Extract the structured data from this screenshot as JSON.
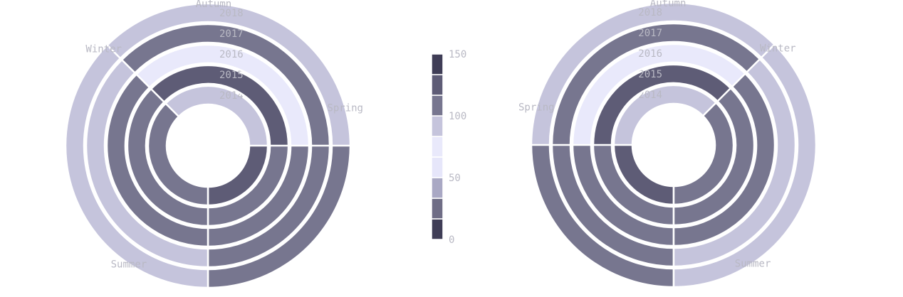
{
  "chart_data": {
    "type": "radial-stacked-bar",
    "seasons": [
      "Winter",
      "Spring",
      "Summer",
      "Autumn"
    ],
    "years": [
      "2014",
      "2015",
      "2016",
      "2017",
      "2018"
    ],
    "series": [
      {
        "year": "2014",
        "values": [
          95,
          130,
          110,
          95
        ]
      },
      {
        "year": "2015",
        "values": [
          115,
          110,
          100,
          120
        ]
      },
      {
        "year": "2016",
        "values": [
          100,
          110,
          100,
          80
        ]
      },
      {
        "year": "2017",
        "values": [
          75,
          110,
          90,
          100
        ]
      },
      {
        "year": "2018",
        "values": [
          115,
          115,
          85,
          90
        ]
      }
    ],
    "color_scale": {
      "min": 0,
      "max": 150,
      "ticks": [
        "0",
        "50",
        "100",
        "150"
      ],
      "colors": [
        "#3f3d56",
        "#6f6d86",
        "#a9a8c4",
        "#e6e6fa",
        "#e9e9fb",
        "#c5c4dc",
        "#77768f",
        "#5e5c76",
        "#3f3d56"
      ]
    },
    "charts": [
      {
        "name": "left",
        "mirrored": false
      },
      {
        "name": "right",
        "mirrored": true
      }
    ]
  }
}
